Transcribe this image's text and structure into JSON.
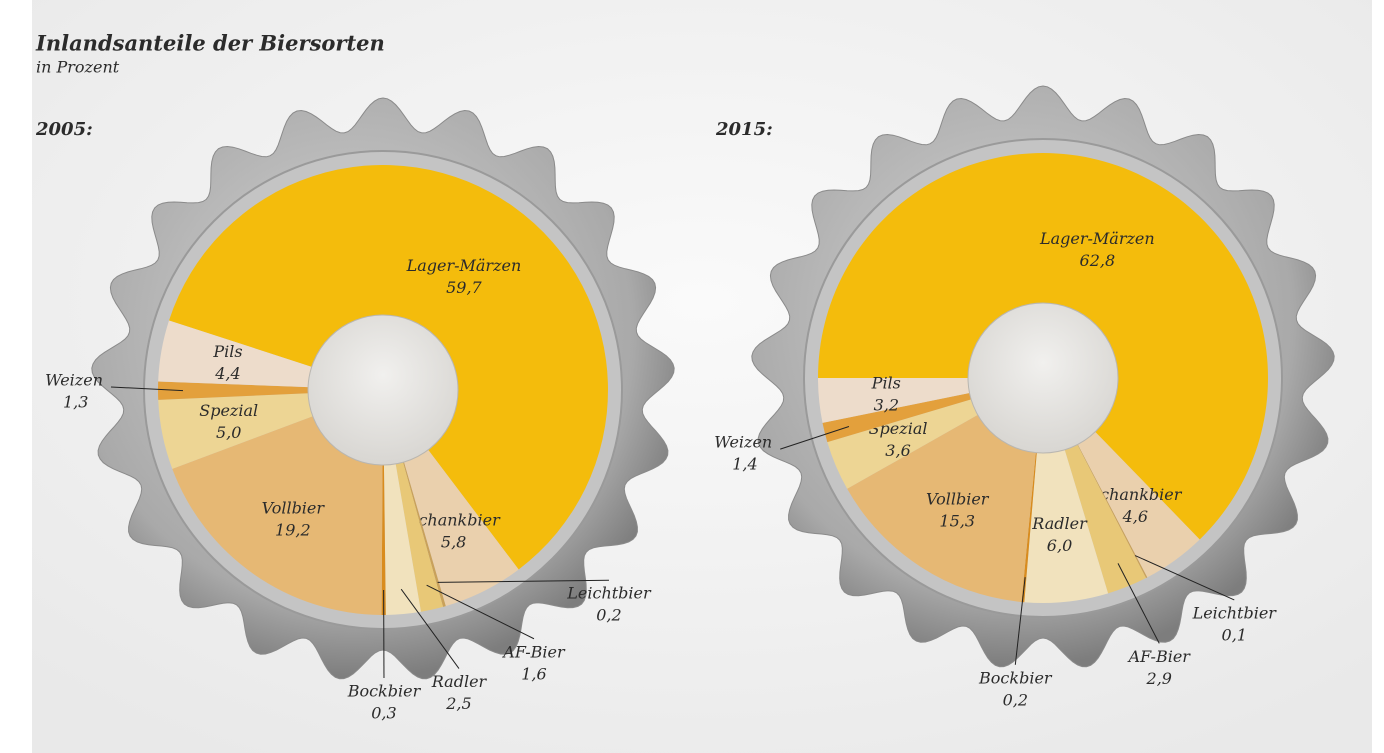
{
  "title": "Inlandsanteile der Biersorten",
  "subtitle": "in Prozent",
  "chart_data": [
    {
      "type": "pie",
      "title": "2005:",
      "categories": [
        "Lager-Märzen",
        "Schankbier",
        "Leichtbier",
        "AF-Bier",
        "Radler",
        "Bockbier",
        "Vollbier",
        "Spezial",
        "Weizen",
        "Pils"
      ],
      "values": [
        59.7,
        5.8,
        0.2,
        1.6,
        2.5,
        0.3,
        19.2,
        5.0,
        1.3,
        4.4
      ],
      "value_labels": [
        "59,7",
        "5,8",
        "0,2",
        "1,6",
        "2,5",
        "0,3",
        "19,2",
        "5,0",
        "1,3",
        "4,4"
      ],
      "colors": [
        "#f4bc0c",
        "#ead0ad",
        "#c9a15a",
        "#e8c877",
        "#f1e2bd",
        "#d98c1e",
        "#e6b874",
        "#edd594",
        "#e3a03c",
        "#eddccb"
      ]
    },
    {
      "type": "pie",
      "title": "2015:",
      "categories": [
        "Lager-Märzen",
        "Schankbier",
        "Leichtbier",
        "AF-Bier",
        "Radler",
        "Bockbier",
        "Vollbier",
        "Spezial",
        "Weizen",
        "Pils"
      ],
      "values": [
        62.8,
        4.6,
        0.1,
        2.9,
        6.0,
        0.2,
        15.3,
        3.6,
        1.4,
        3.2
      ],
      "value_labels": [
        "62,8",
        "4,6",
        "0,1",
        "2,9",
        "6,0",
        "0,2",
        "15,3",
        "3,6",
        "1,4",
        "3,2"
      ],
      "colors": [
        "#f4bc0c",
        "#ead0ad",
        "#c9a15a",
        "#e8c877",
        "#f1e2bd",
        "#d98c1e",
        "#e6b874",
        "#edd594",
        "#e3a03c",
        "#eddccb"
      ]
    }
  ]
}
